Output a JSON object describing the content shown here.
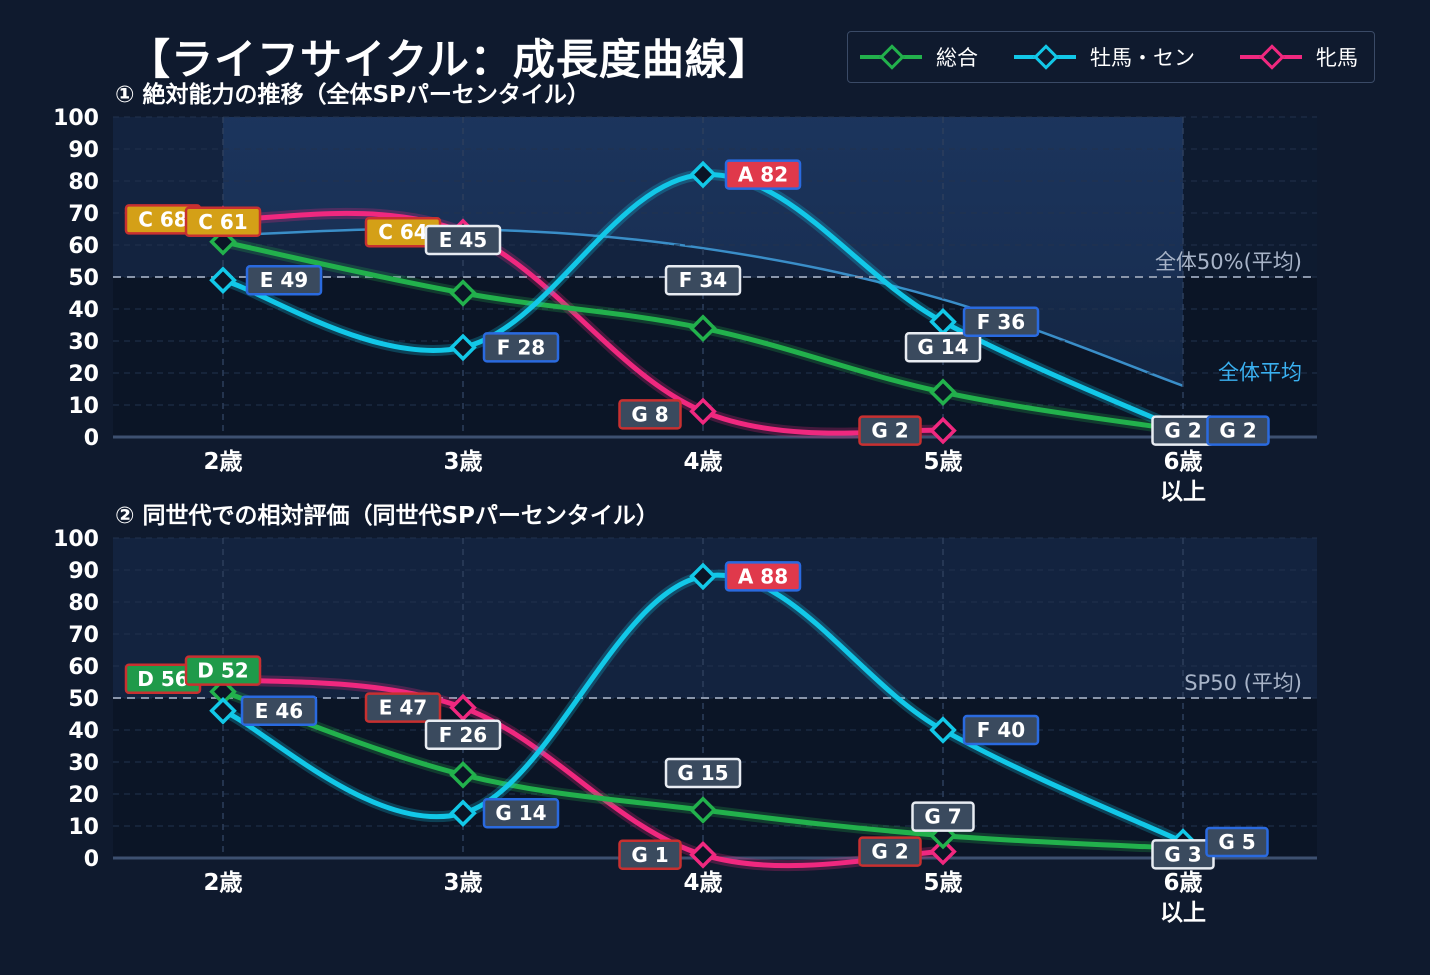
{
  "title": "【ライフサイクル：成長度曲線】",
  "legend": [
    {
      "name": "総合",
      "color": "#22b14c"
    },
    {
      "name": "牡馬・セン",
      "color": "#12c8e8"
    },
    {
      "name": "牝馬",
      "color": "#f0287f"
    }
  ],
  "chart_data": [
    {
      "type": "line",
      "title": "① 絶対能力の推移（全体SPパーセンタイル）",
      "categories": [
        "2歳",
        "3歳",
        "4歳",
        "5歳",
        "6歳\n以上"
      ],
      "ylim": [
        0,
        100
      ],
      "yticks": [
        0,
        10,
        20,
        30,
        40,
        50,
        60,
        70,
        80,
        90,
        100
      ],
      "grid": true,
      "legend_position": "top-right",
      "reference_line": {
        "value": 50,
        "label": "全体50%(平均)"
      },
      "average_curve": {
        "label": "全体平均",
        "values": [
          63,
          65,
          59,
          43,
          16
        ],
        "color": "#3a8ec8"
      },
      "series": [
        {
          "name": "総合",
          "color": "#22b14c",
          "values": [
            61,
            45,
            34,
            14,
            2
          ],
          "labels": [
            "C 61",
            "E 45",
            "F 34",
            "G 14",
            "G 2"
          ],
          "label_colors": [
            "#d4a017",
            "#3a4a5e",
            "#3a4a5e",
            "#3a4a5e",
            "#3a4a5e"
          ]
        },
        {
          "name": "牡馬・セン",
          "color": "#12c8e8",
          "values": [
            49,
            28,
            82,
            36,
            2
          ],
          "labels": [
            "E 49",
            "F 28",
            "A 82",
            "F 36",
            "G 2"
          ],
          "label_colors": [
            "#3a4a5e",
            "#3a4a5e",
            "#e0394b",
            "#3a4a5e",
            "#3a4a5e"
          ]
        },
        {
          "name": "牝馬",
          "color": "#f0287f",
          "values": [
            68,
            64,
            8,
            2,
            null
          ],
          "labels": [
            "C 68",
            "C 64",
            "G 8",
            "G 2",
            ""
          ],
          "label_colors": [
            "#d4a017",
            "#d4a017",
            "#3a4a5e",
            "#3a4a5e",
            "#3a4a5e"
          ]
        }
      ]
    },
    {
      "type": "line",
      "title": "② 同世代での相対評価（同世代SPパーセンタイル）",
      "categories": [
        "2歳",
        "3歳",
        "4歳",
        "5歳",
        "6歳\n以上"
      ],
      "ylim": [
        0,
        100
      ],
      "yticks": [
        0,
        10,
        20,
        30,
        40,
        50,
        60,
        70,
        80,
        90,
        100
      ],
      "grid": true,
      "reference_line": {
        "value": 50,
        "label": "SP50 (平均)"
      },
      "series": [
        {
          "name": "総合",
          "color": "#22b14c",
          "values": [
            52,
            26,
            15,
            7,
            3
          ],
          "labels": [
            "D 52",
            "F 26",
            "G 15",
            "G 7",
            "G 3"
          ],
          "label_colors": [
            "#1f9a4a",
            "#3a4a5e",
            "#3a4a5e",
            "#3a4a5e",
            "#3a4a5e"
          ]
        },
        {
          "name": "牡馬・セン",
          "color": "#12c8e8",
          "values": [
            46,
            14,
            88,
            40,
            5
          ],
          "labels": [
            "E 46",
            "G 14",
            "A 88",
            "F 40",
            "G 5"
          ],
          "label_colors": [
            "#3a4a5e",
            "#3a4a5e",
            "#e0394b",
            "#3a4a5e",
            "#3a4a5e"
          ]
        },
        {
          "name": "牝馬",
          "color": "#f0287f",
          "values": [
            56,
            47,
            1,
            2,
            null
          ],
          "labels": [
            "D 56",
            "E 47",
            "G 1",
            "G 2",
            ""
          ],
          "label_colors": [
            "#1f9a4a",
            "#3a4a5e",
            "#3a4a5e",
            "#3a4a5e",
            "#3a4a5e"
          ]
        }
      ]
    }
  ]
}
